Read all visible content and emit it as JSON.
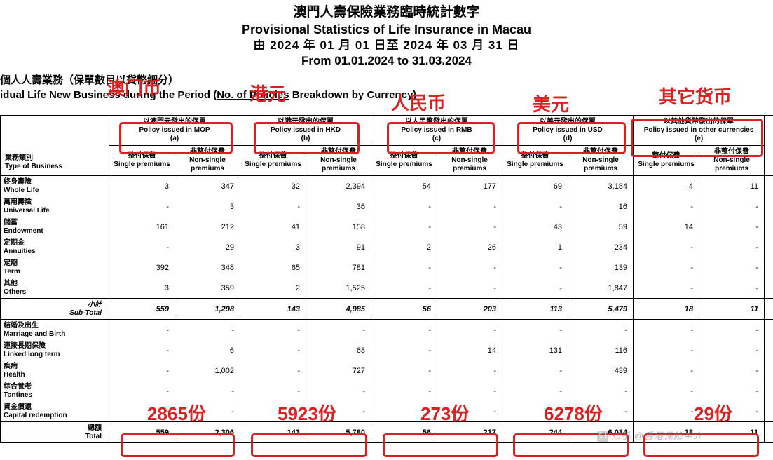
{
  "header": {
    "title_cn": "澳門人壽保險業務臨時統計數字",
    "title_en": "Provisional Statistics of Life Insurance in Macau",
    "period_cn": "由 2024 年 01 月 01 日至 2024 年 03 月 31 日",
    "period_en": "From 01.01.2024 to 31.03.2024"
  },
  "subheader": {
    "line_cn": "個人人壽業務（保單數目以貨幣細分）",
    "line_en_pre": "idual Life New Business during the Period (",
    "line_en_u": "No. of Policies",
    "line_en_post": " Breakdown by Currency)"
  },
  "annotations": {
    "mop": "澳门币",
    "hkd": "港元",
    "rmb": "人民币",
    "usd": "美元",
    "other": "其它货币",
    "t_mop": "2865份",
    "t_hkd": "5923份",
    "t_rmb": "273份",
    "t_usd": "6278份",
    "t_other": "29份"
  },
  "colheads": {
    "type_cn": "業務類別",
    "type_en": "Type of Business",
    "mop": {
      "cn": "以澳門元發出的保單",
      "en": "Policy issued in MOP",
      "sub": "(a)"
    },
    "hkd": {
      "cn": "以港元發出的保單",
      "en": "Policy issued in HKD",
      "sub": "(b)"
    },
    "rmb": {
      "cn": "以人民幣發出的保單",
      "en": "Policy issued in RMB",
      "sub": "(c)"
    },
    "usd": {
      "cn": "以美元發出的保單",
      "en": "Policy issued in USD",
      "sub": "(d)"
    },
    "other": {
      "cn": "以其他貨幣發出的保單",
      "en": "Policy issued in other currencies",
      "sub": "(e)"
    },
    "sp": {
      "cn": "整付保費",
      "en": "Single premiums"
    },
    "nsp": {
      "cn": "非整付保費",
      "en": "Non-single premiums"
    }
  },
  "rows": [
    {
      "label_cn": "終身壽險",
      "label_en": "Whole Life",
      "v": [
        "3",
        "347",
        "32",
        "2,394",
        "54",
        "177",
        "69",
        "3,184",
        "4",
        "11"
      ]
    },
    {
      "label_cn": "萬用壽險",
      "label_en": "Universal Life",
      "v": [
        "-",
        "3",
        "-",
        "36",
        "-",
        "-",
        "-",
        "16",
        "-",
        "-"
      ]
    },
    {
      "label_cn": "儲蓄",
      "label_en": "Endowment",
      "v": [
        "161",
        "212",
        "41",
        "158",
        "-",
        "-",
        "43",
        "59",
        "14",
        "-"
      ]
    },
    {
      "label_cn": "定期金",
      "label_en": "Annuities",
      "v": [
        "-",
        "29",
        "3",
        "91",
        "2",
        "26",
        "1",
        "234",
        "-",
        "-"
      ]
    },
    {
      "label_cn": "定期",
      "label_en": "Term",
      "v": [
        "392",
        "348",
        "65",
        "781",
        "-",
        "-",
        "-",
        "139",
        "-",
        "-"
      ]
    },
    {
      "label_cn": "其他",
      "label_en": "Others",
      "v": [
        "3",
        "359",
        "2",
        "1,525",
        "-",
        "-",
        "-",
        "1,847",
        "-",
        "-"
      ]
    }
  ],
  "subtotal": {
    "label_cn": "小計",
    "label_en": "Sub-Total",
    "v": [
      "559",
      "1,298",
      "143",
      "4,985",
      "56",
      "203",
      "113",
      "5,479",
      "18",
      "11"
    ]
  },
  "rows2": [
    {
      "label_cn": "結婚及出生",
      "label_en": "Marriage and Birth",
      "v": [
        "-",
        "-",
        "-",
        "-",
        "-",
        "-",
        "-",
        "-",
        "-",
        "-"
      ]
    },
    {
      "label_cn": "連接長期保險",
      "label_en": "Linked long term",
      "v": [
        "-",
        "6",
        "-",
        "68",
        "-",
        "14",
        "131",
        "116",
        "-",
        "-"
      ]
    },
    {
      "label_cn": "疾病",
      "label_en": "Health",
      "v": [
        "-",
        "1,002",
        "-",
        "727",
        "-",
        "-",
        "-",
        "439",
        "-",
        "-"
      ]
    },
    {
      "label_cn": "綜合養老",
      "label_en": "Tontines",
      "v": [
        "-",
        "-",
        "-",
        "-",
        "-",
        "-",
        "-",
        "-",
        "-",
        "-"
      ]
    },
    {
      "label_cn": "資金償還",
      "label_en": "Capital redemption",
      "v": [
        "-",
        "-",
        "-",
        "-",
        "-",
        "-",
        "-",
        "-",
        "-",
        "-"
      ]
    }
  ],
  "total": {
    "label_cn": "總額",
    "label_en": "Total",
    "v": [
      "559",
      "2,306",
      "143",
      "5,780",
      "56",
      "217",
      "244",
      "6,034",
      "18",
      "11"
    ]
  },
  "watermark": "知乎 @香港保险中介",
  "colors": {
    "red": "#d62222",
    "text": "#000000",
    "bg": "#ffffff"
  }
}
